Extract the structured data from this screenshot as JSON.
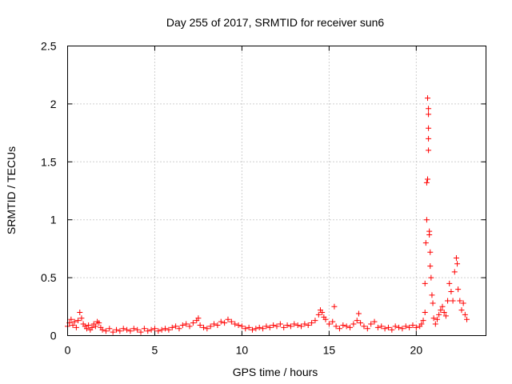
{
  "chart_data": {
    "type": "scatter",
    "title": "Day 255 of 2017, SRMTID for receiver sun6",
    "xlabel": "GPS time / hours",
    "ylabel": "SRMTID / TECUs",
    "xlim": [
      0,
      24
    ],
    "ylim": [
      0,
      2.5
    ],
    "xticks": [
      "0",
      "5",
      "10",
      "15",
      "20"
    ],
    "yticks": [
      "0",
      "0.5",
      "1",
      "1.5",
      "2",
      "2.5"
    ],
    "grid": true,
    "marker": "plus",
    "series": [
      {
        "name": "SRMTID",
        "color": "#ff0000",
        "points": [
          [
            0.0,
            0.08
          ],
          [
            0.1,
            0.11
          ],
          [
            0.2,
            0.14
          ],
          [
            0.3,
            0.09
          ],
          [
            0.4,
            0.12
          ],
          [
            0.5,
            0.07
          ],
          [
            0.6,
            0.13
          ],
          [
            0.7,
            0.2
          ],
          [
            0.8,
            0.15
          ],
          [
            0.9,
            0.1
          ],
          [
            1.0,
            0.08
          ],
          [
            1.1,
            0.06
          ],
          [
            1.2,
            0.09
          ],
          [
            1.3,
            0.05
          ],
          [
            1.4,
            0.07
          ],
          [
            1.5,
            0.1
          ],
          [
            1.6,
            0.08
          ],
          [
            1.7,
            0.12
          ],
          [
            1.8,
            0.11
          ],
          [
            1.9,
            0.07
          ],
          [
            2.0,
            0.05
          ],
          [
            2.2,
            0.04
          ],
          [
            2.4,
            0.06
          ],
          [
            2.6,
            0.03
          ],
          [
            2.8,
            0.05
          ],
          [
            3.0,
            0.04
          ],
          [
            3.2,
            0.06
          ],
          [
            3.4,
            0.05
          ],
          [
            3.6,
            0.04
          ],
          [
            3.8,
            0.06
          ],
          [
            4.0,
            0.05
          ],
          [
            4.2,
            0.03
          ],
          [
            4.4,
            0.06
          ],
          [
            4.6,
            0.04
          ],
          [
            4.8,
            0.05
          ],
          [
            5.0,
            0.06
          ],
          [
            5.2,
            0.04
          ],
          [
            5.4,
            0.05
          ],
          [
            5.6,
            0.06
          ],
          [
            5.8,
            0.05
          ],
          [
            6.0,
            0.07
          ],
          [
            6.2,
            0.08
          ],
          [
            6.4,
            0.06
          ],
          [
            6.6,
            0.09
          ],
          [
            6.8,
            0.1
          ],
          [
            7.0,
            0.08
          ],
          [
            7.2,
            0.11
          ],
          [
            7.4,
            0.13
          ],
          [
            7.5,
            0.15
          ],
          [
            7.6,
            0.09
          ],
          [
            7.8,
            0.07
          ],
          [
            8.0,
            0.06
          ],
          [
            8.2,
            0.08
          ],
          [
            8.4,
            0.1
          ],
          [
            8.6,
            0.09
          ],
          [
            8.8,
            0.12
          ],
          [
            9.0,
            0.11
          ],
          [
            9.2,
            0.14
          ],
          [
            9.4,
            0.12
          ],
          [
            9.6,
            0.1
          ],
          [
            9.8,
            0.09
          ],
          [
            10.0,
            0.08
          ],
          [
            10.2,
            0.06
          ],
          [
            10.4,
            0.07
          ],
          [
            10.6,
            0.05
          ],
          [
            10.8,
            0.06
          ],
          [
            11.0,
            0.07
          ],
          [
            11.2,
            0.06
          ],
          [
            11.4,
            0.08
          ],
          [
            11.6,
            0.07
          ],
          [
            11.8,
            0.09
          ],
          [
            12.0,
            0.08
          ],
          [
            12.2,
            0.1
          ],
          [
            12.4,
            0.07
          ],
          [
            12.6,
            0.09
          ],
          [
            12.8,
            0.08
          ],
          [
            13.0,
            0.1
          ],
          [
            13.2,
            0.09
          ],
          [
            13.4,
            0.08
          ],
          [
            13.6,
            0.1
          ],
          [
            13.8,
            0.09
          ],
          [
            14.0,
            0.11
          ],
          [
            14.2,
            0.13
          ],
          [
            14.4,
            0.18
          ],
          [
            14.5,
            0.22
          ],
          [
            14.6,
            0.2
          ],
          [
            14.7,
            0.16
          ],
          [
            14.8,
            0.14
          ],
          [
            15.0,
            0.1
          ],
          [
            15.2,
            0.12
          ],
          [
            15.3,
            0.25
          ],
          [
            15.4,
            0.08
          ],
          [
            15.6,
            0.06
          ],
          [
            15.8,
            0.09
          ],
          [
            16.0,
            0.08
          ],
          [
            16.2,
            0.07
          ],
          [
            16.4,
            0.1
          ],
          [
            16.6,
            0.13
          ],
          [
            16.7,
            0.19
          ],
          [
            16.8,
            0.11
          ],
          [
            17.0,
            0.08
          ],
          [
            17.2,
            0.06
          ],
          [
            17.4,
            0.1
          ],
          [
            17.6,
            0.12
          ],
          [
            17.8,
            0.07
          ],
          [
            18.0,
            0.08
          ],
          [
            18.2,
            0.06
          ],
          [
            18.4,
            0.07
          ],
          [
            18.6,
            0.05
          ],
          [
            18.8,
            0.08
          ],
          [
            19.0,
            0.07
          ],
          [
            19.2,
            0.06
          ],
          [
            19.4,
            0.08
          ],
          [
            19.6,
            0.07
          ],
          [
            19.8,
            0.09
          ],
          [
            20.0,
            0.07
          ],
          [
            20.2,
            0.08
          ],
          [
            20.3,
            0.1
          ],
          [
            20.4,
            0.13
          ],
          [
            20.5,
            0.2
          ],
          [
            20.5,
            0.45
          ],
          [
            20.55,
            0.8
          ],
          [
            20.6,
            1.0
          ],
          [
            20.6,
            1.32
          ],
          [
            20.65,
            1.35
          ],
          [
            20.65,
            2.05
          ],
          [
            20.7,
            1.96
          ],
          [
            20.7,
            1.91
          ],
          [
            20.7,
            1.79
          ],
          [
            20.7,
            1.7
          ],
          [
            20.7,
            1.6
          ],
          [
            20.75,
            0.9
          ],
          [
            20.75,
            0.87
          ],
          [
            20.8,
            0.72
          ],
          [
            20.8,
            0.6
          ],
          [
            20.85,
            0.5
          ],
          [
            20.9,
            0.35
          ],
          [
            20.95,
            0.28
          ],
          [
            21.0,
            0.15
          ],
          [
            21.1,
            0.1
          ],
          [
            21.2,
            0.14
          ],
          [
            21.3,
            0.18
          ],
          [
            21.4,
            0.22
          ],
          [
            21.5,
            0.25
          ],
          [
            21.6,
            0.2
          ],
          [
            21.7,
            0.17
          ],
          [
            21.8,
            0.3
          ],
          [
            21.9,
            0.45
          ],
          [
            22.0,
            0.38
          ],
          [
            22.1,
            0.3
          ],
          [
            22.2,
            0.55
          ],
          [
            22.3,
            0.67
          ],
          [
            22.35,
            0.62
          ],
          [
            22.4,
            0.4
          ],
          [
            22.5,
            0.3
          ],
          [
            22.6,
            0.22
          ],
          [
            22.7,
            0.28
          ],
          [
            22.8,
            0.18
          ],
          [
            22.9,
            0.14
          ]
        ]
      }
    ]
  }
}
